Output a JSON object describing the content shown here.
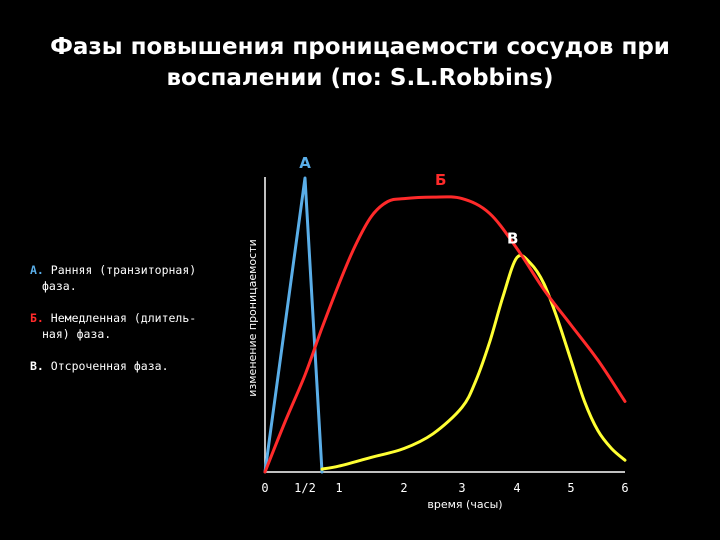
{
  "title": {
    "line1": "Фазы повышения проницаемости сосудов при",
    "line2": "воспалении (по: S.L.Robbins)"
  },
  "legend": [
    {
      "letter": "А.",
      "line1": "Ранняя (транзиторная)",
      "line2": "фаза.",
      "color": "#5aaee8"
    },
    {
      "letter": "Б.",
      "line1": "Немедленная (длитель-",
      "line2": "ная) фаза.",
      "color": "#ff2a2a"
    },
    {
      "letter": "В.",
      "line1": "Отсроченная фаза.",
      "line2": "",
      "color": "#ffffff"
    }
  ],
  "chart_data": {
    "type": "line",
    "title": "Фазы повышения проницаемости сосудов при воспалении (по: S.L.Robbins)",
    "xlabel": "время (часы)",
    "ylabel": "изменение проницаемости",
    "x_ticks": [
      "0",
      "1/2",
      "1",
      "2",
      "3",
      "4",
      "5",
      "6"
    ],
    "xlim": [
      0,
      6
    ],
    "ylim": [
      0,
      1
    ],
    "grid": false,
    "series": [
      {
        "name": "А",
        "color": "#5aaee8",
        "x": [
          0,
          0.5,
          0.75
        ],
        "y": [
          0,
          1.0,
          0
        ]
      },
      {
        "name": "Б",
        "color": "#ff2a2a",
        "x": [
          0,
          0.25,
          0.5,
          0.75,
          1.0,
          1.25,
          1.5,
          1.75,
          2.0,
          2.5,
          3.0,
          3.5,
          4.0,
          4.5,
          5.0,
          5.5,
          6.0
        ],
        "y": [
          0,
          0.17,
          0.33,
          0.49,
          0.64,
          0.77,
          0.87,
          0.92,
          0.93,
          0.935,
          0.93,
          0.88,
          0.76,
          0.62,
          0.5,
          0.38,
          0.24
        ]
      },
      {
        "name": "В",
        "color": "#ffff33",
        "x": [
          0.75,
          1.0,
          1.5,
          2.0,
          2.5,
          3.0,
          3.25,
          3.5,
          3.75,
          4.0,
          4.25,
          4.5,
          4.75,
          5.0,
          5.25,
          5.5,
          5.75,
          6.0
        ],
        "y": [
          0.01,
          0.02,
          0.05,
          0.08,
          0.13,
          0.22,
          0.31,
          0.44,
          0.6,
          0.73,
          0.71,
          0.64,
          0.52,
          0.38,
          0.24,
          0.14,
          0.08,
          0.04
        ]
      }
    ]
  }
}
